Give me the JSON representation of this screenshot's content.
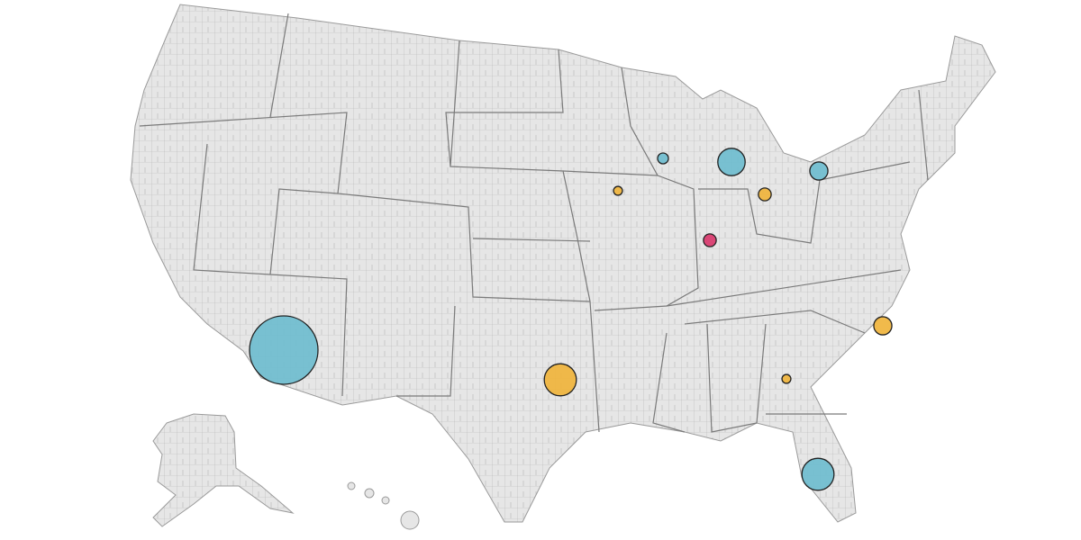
{
  "map": {
    "markers": [
      {
        "color": "#6fbdcf",
        "value": 100
      },
      {
        "color": "#f0b43c",
        "value": 22
      },
      {
        "color": "#6fbdcf",
        "value": 22
      },
      {
        "color": "#6fbdcf",
        "value": 16
      },
      {
        "color": "#6fbdcf",
        "value": 7
      },
      {
        "color": "#f0b43c",
        "value": 7
      },
      {
        "color": "#d9386c",
        "value": 3.5
      },
      {
        "color": "#f0b43c",
        "value": 3.5
      },
      {
        "color": "#f0b43c",
        "value": 1.7
      },
      {
        "color": "#6fbdcf",
        "value": 2.5
      },
      {
        "color": "#f0b43c",
        "value": 1.7
      }
    ]
  }
}
